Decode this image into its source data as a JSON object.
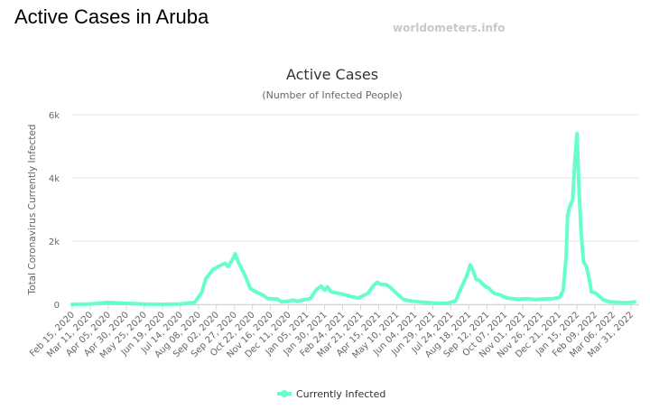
{
  "page": {
    "title": "Active Cases in Aruba",
    "watermark": "worldometers.info"
  },
  "chart_data": {
    "type": "line",
    "title": "Active Cases",
    "subtitle": "(Number of Infected People)",
    "ylabel": "Total Coronavirus Currently Infected",
    "ylim": [
      0,
      6000
    ],
    "yticks": [
      {
        "value": 0,
        "label": "0"
      },
      {
        "value": 2000,
        "label": "2k"
      },
      {
        "value": 4000,
        "label": "4k"
      },
      {
        "value": 6000,
        "label": "6k"
      }
    ],
    "xticks": [
      "Feb 15, 2020",
      "Mar 11, 2020",
      "Apr 05, 2020",
      "Apr 30, 2020",
      "May 25, 2020",
      "Jun 19, 2020",
      "Jul 14, 2020",
      "Aug 08, 2020",
      "Sep 02, 2020",
      "Sep 27, 2020",
      "Oct 22, 2020",
      "Nov 16, 2020",
      "Dec 11, 2020",
      "Jan 05, 2021",
      "Jan 30, 2021",
      "Feb 24, 2021",
      "Mar 21, 2021",
      "Apr 15, 2021",
      "May 10, 2021",
      "Jun 04, 2021",
      "Jun 29, 2021",
      "Jul 24, 2021",
      "Aug 18, 2021",
      "Sep 12, 2021",
      "Oct 07, 2021",
      "Nov 01, 2021",
      "Nov 26, 2021",
      "Dec 21, 2021",
      "Jan 15, 2022",
      "Feb 09, 2022",
      "Mar 06, 2022",
      "Mar 31, 2022"
    ],
    "grid": true,
    "legend_position": "bottom-center",
    "series": [
      {
        "name": "Currently Infected",
        "color": "#66ffcc",
        "points": [
          [
            "Feb 15, 2020",
            0
          ],
          [
            "Mar 11, 2020",
            10
          ],
          [
            "Apr 05, 2020",
            60
          ],
          [
            "Apr 30, 2020",
            30
          ],
          [
            "May 25, 2020",
            5
          ],
          [
            "Jun 19, 2020",
            0
          ],
          [
            "Jul 14, 2020",
            10
          ],
          [
            "Aug 03, 2020",
            60
          ],
          [
            "Aug 13, 2020",
            400
          ],
          [
            "Aug 18, 2020",
            800
          ],
          [
            "Aug 28, 2020",
            1100
          ],
          [
            "Sep 05, 2020",
            1200
          ],
          [
            "Sep 14, 2020",
            1300
          ],
          [
            "Sep 18, 2020",
            1200
          ],
          [
            "Sep 24, 2020",
            1400
          ],
          [
            "Sep 28, 2020",
            1600
          ],
          [
            "Oct 03, 2020",
            1300
          ],
          [
            "Oct 12, 2020",
            900
          ],
          [
            "Oct 19, 2020",
            500
          ],
          [
            "Oct 26, 2020",
            400
          ],
          [
            "Nov 05, 2020",
            300
          ],
          [
            "Nov 12, 2020",
            180
          ],
          [
            "Nov 25, 2020",
            170
          ],
          [
            "Dec 01, 2020",
            80
          ],
          [
            "Dec 10, 2020",
            100
          ],
          [
            "Dec 18, 2020",
            130
          ],
          [
            "Dec 24, 2020",
            100
          ],
          [
            "Dec 31, 2020",
            140
          ],
          [
            "Jan 10, 2021",
            180
          ],
          [
            "Jan 18, 2021",
            450
          ],
          [
            "Jan 25, 2021",
            580
          ],
          [
            "Jan 30, 2021",
            450
          ],
          [
            "Feb 03, 2021",
            550
          ],
          [
            "Feb 08, 2021",
            400
          ],
          [
            "Feb 18, 2021",
            350
          ],
          [
            "Feb 28, 2021",
            300
          ],
          [
            "Mar 10, 2021",
            230
          ],
          [
            "Mar 18, 2021",
            200
          ],
          [
            "Mar 31, 2021",
            350
          ],
          [
            "Apr 08, 2021",
            600
          ],
          [
            "Apr 13, 2021",
            700
          ],
          [
            "Apr 18, 2021",
            630
          ],
          [
            "Apr 26, 2021",
            620
          ],
          [
            "May 03, 2021",
            500
          ],
          [
            "May 12, 2021",
            300
          ],
          [
            "May 20, 2021",
            150
          ],
          [
            "May 31, 2021",
            100
          ],
          [
            "Jun 10, 2021",
            80
          ],
          [
            "Jun 25, 2021",
            50
          ],
          [
            "Jul 10, 2021",
            30
          ],
          [
            "Jul 20, 2021",
            40
          ],
          [
            "Jul 31, 2021",
            120
          ],
          [
            "Aug 05, 2021",
            400
          ],
          [
            "Aug 10, 2021",
            650
          ],
          [
            "Aug 15, 2021",
            900
          ],
          [
            "Aug 20, 2021",
            1250
          ],
          [
            "Aug 25, 2021",
            1000
          ],
          [
            "Aug 28, 2021",
            800
          ],
          [
            "Sep 02, 2021",
            750
          ],
          [
            "Sep 08, 2021",
            600
          ],
          [
            "Sep 15, 2021",
            500
          ],
          [
            "Sep 22, 2021",
            350
          ],
          [
            "Sep 30, 2021",
            300
          ],
          [
            "Oct 10, 2021",
            200
          ],
          [
            "Oct 25, 2021",
            160
          ],
          [
            "Nov 08, 2021",
            180
          ],
          [
            "Nov 18, 2021",
            150
          ],
          [
            "Dec 01, 2021",
            170
          ],
          [
            "Dec 12, 2021",
            180
          ],
          [
            "Dec 22, 2021",
            220
          ],
          [
            "Dec 27, 2021",
            450
          ],
          [
            "Dec 31, 2021",
            1500
          ],
          [
            "Jan 02, 2022",
            2800
          ],
          [
            "Jan 05, 2022",
            3100
          ],
          [
            "Jan 09, 2022",
            3300
          ],
          [
            "Jan 12, 2022",
            4500
          ],
          [
            "Jan 15, 2022",
            5400
          ],
          [
            "Jan 18, 2022",
            3500
          ],
          [
            "Jan 21, 2022",
            2200
          ],
          [
            "Jan 24, 2022",
            1350
          ],
          [
            "Jan 28, 2022",
            1200
          ],
          [
            "Feb 01, 2022",
            800
          ],
          [
            "Feb 04, 2022",
            400
          ],
          [
            "Feb 10, 2022",
            350
          ],
          [
            "Feb 15, 2022",
            250
          ],
          [
            "Feb 20, 2022",
            150
          ],
          [
            "Mar 01, 2022",
            80
          ],
          [
            "Mar 15, 2022",
            60
          ],
          [
            "Mar 25, 2022",
            50
          ],
          [
            "Apr 05, 2022",
            80
          ]
        ]
      }
    ]
  }
}
